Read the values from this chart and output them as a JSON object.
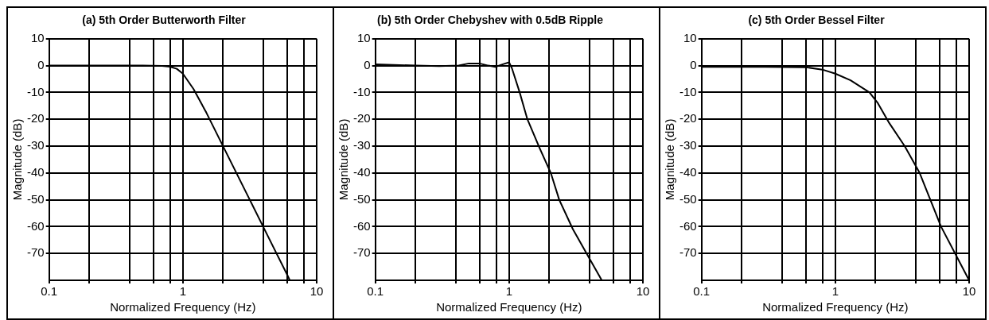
{
  "chart_data": [
    {
      "type": "line",
      "title": "(a) 5th Order Butterworth Filter",
      "xlabel": "Normalized Frequency (Hz)",
      "ylabel": "Magnitude (dB)",
      "log": "x",
      "grid": true,
      "legend": false,
      "marker": "none",
      "line_style": "solid",
      "xlim": [
        0.1,
        10
      ],
      "xticks": [
        0.1,
        {
          "value": 0.2,
          "label": null
        },
        {
          "value": 0.4,
          "label": null
        },
        {
          "value": 0.6,
          "label": null
        },
        {
          "value": 0.8,
          "label": null
        },
        1,
        {
          "value": 2,
          "label": null
        },
        {
          "value": 4,
          "label": null
        },
        {
          "value": 6,
          "label": null
        },
        {
          "value": 8,
          "label": null
        },
        10
      ],
      "ylim": [
        -80,
        10
      ],
      "yticks": [
        -70,
        -60,
        -50,
        -40,
        -30,
        -20,
        -10,
        0,
        10
      ],
      "x": [
        0.1,
        0.3,
        0.5,
        0.7,
        0.8,
        0.9,
        1,
        1.2,
        1.5,
        2,
        3,
        4,
        5,
        6,
        6.3
      ],
      "series": [
        {
          "color": "#000000",
          "values": [
            0,
            0,
            0,
            -0.1,
            -0.4,
            -1.2,
            -3,
            -8.7,
            -17.6,
            -30.1,
            -47.7,
            -60.2,
            -69.9,
            -77.8,
            -80
          ]
        }
      ]
    },
    {
      "type": "line",
      "title": "(b) 5th Order Chebyshev with 0.5dB Ripple",
      "xlabel": "Normalized Frequency (Hz)",
      "ylabel": "Magnitude (dB)",
      "log": "x",
      "grid": true,
      "legend": false,
      "marker": "none",
      "line_style": "solid",
      "xlim": [
        0.1,
        10
      ],
      "xticks": [
        0.1,
        {
          "value": 0.2,
          "label": null
        },
        {
          "value": 0.4,
          "label": null
        },
        {
          "value": 0.6,
          "label": null
        },
        {
          "value": 0.8,
          "label": null
        },
        1,
        {
          "value": 2,
          "label": null
        },
        {
          "value": 4,
          "label": null
        },
        {
          "value": 6,
          "label": null
        },
        {
          "value": 8,
          "label": null
        },
        10
      ],
      "ylim": [
        -80,
        10
      ],
      "yticks": [
        -70,
        -60,
        -50,
        -40,
        -30,
        -20,
        -10,
        0,
        10
      ],
      "x": [
        0.1,
        0.2,
        0.3,
        0.42,
        0.5,
        0.6,
        0.7,
        0.79,
        0.9,
        1,
        1.05,
        1.2,
        1.37,
        1.7,
        2.05,
        2.37,
        3,
        4,
        4.93
      ],
      "series": [
        {
          "color": "#000000",
          "values": [
            0.5,
            0,
            -0.2,
            0,
            0.8,
            0.8,
            0,
            -0.5,
            0.5,
            1.2,
            -1,
            -10,
            -20,
            -31,
            -40,
            -50,
            -61,
            -72,
            -80
          ]
        }
      ]
    },
    {
      "type": "line",
      "title": "(c) 5th Order Bessel Filter",
      "xlabel": "Normalized Frequency (Hz)",
      "ylabel": "Magnitude (dB)",
      "log": "x",
      "grid": true,
      "legend": false,
      "marker": "none",
      "line_style": "solid",
      "xlim": [
        0.1,
        10
      ],
      "xticks": [
        0.1,
        {
          "value": 0.2,
          "label": null
        },
        {
          "value": 0.4,
          "label": null
        },
        {
          "value": 0.6,
          "label": null
        },
        {
          "value": 0.8,
          "label": null
        },
        1,
        {
          "value": 2,
          "label": null
        },
        {
          "value": 4,
          "label": null
        },
        {
          "value": 6,
          "label": null
        },
        {
          "value": 8,
          "label": null
        },
        10
      ],
      "ylim": [
        -80,
        10
      ],
      "yticks": [
        -70,
        -60,
        -50,
        -40,
        -30,
        -20,
        -10,
        0,
        10
      ],
      "x": [
        0.1,
        0.3,
        0.6,
        0.8,
        1,
        1.3,
        1.8,
        2.08,
        2.5,
        3.3,
        4.27,
        6.17,
        10
      ],
      "series": [
        {
          "color": "#000000",
          "values": [
            -0.5,
            -0.5,
            -0.6,
            -1.5,
            -3,
            -5.5,
            -10,
            -14,
            -21,
            -30,
            -40,
            -60,
            -80
          ]
        }
      ]
    }
  ]
}
